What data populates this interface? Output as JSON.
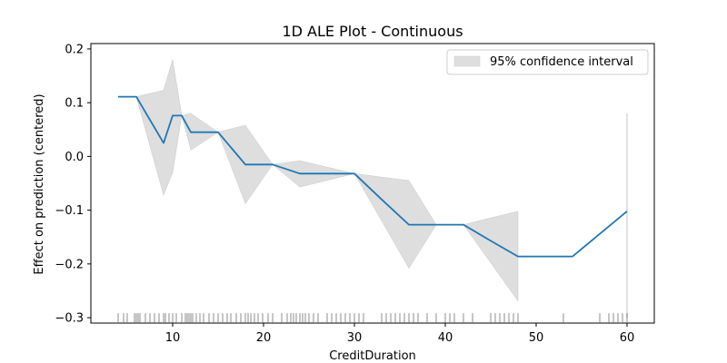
{
  "chart_data": {
    "type": "line",
    "title": "1D ALE Plot - Continuous",
    "xlabel": "CreditDuration",
    "ylabel": "Effect on prediction (centered)",
    "xlim": [
      1,
      63
    ],
    "ylim": [
      -0.31,
      0.21
    ],
    "xticks": [
      10,
      20,
      30,
      40,
      50,
      60
    ],
    "yticks": [
      -0.3,
      -0.2,
      -0.1,
      0.0,
      0.1,
      0.2
    ],
    "ytick_labels": [
      "−0.3",
      "−0.2",
      "−0.1",
      "0.0",
      "0.1",
      "0.2"
    ],
    "grid": false,
    "legend_position": "top-right",
    "colors": {
      "line": "#1f77b4",
      "band": "#d3d3d3",
      "rug": "#000000"
    },
    "series": [
      {
        "x": [
          4,
          6,
          9,
          10,
          11,
          12,
          15,
          18,
          21,
          24,
          27,
          30,
          33,
          36,
          39,
          42,
          45,
          48,
          54,
          60
        ],
        "values": [
          0.111,
          0.111,
          0.025,
          0.076,
          0.076,
          0.045,
          0.045,
          -0.015,
          -0.015,
          -0.032,
          -0.032,
          -0.032,
          -0.08,
          -0.127,
          -0.127,
          -0.127,
          -0.157,
          -0.186,
          -0.186,
          -0.102
        ]
      }
    ],
    "confidence_band": {
      "name": "95% confidence interval",
      "x": [
        6,
        9,
        10,
        11,
        12,
        15,
        18,
        21,
        24,
        30,
        36,
        39,
        42,
        48
      ],
      "lower": [
        0.111,
        -0.072,
        -0.03,
        0.076,
        0.012,
        0.045,
        -0.088,
        -0.015,
        -0.057,
        -0.032,
        -0.208,
        -0.127,
        -0.127,
        -0.269
      ],
      "upper": [
        0.111,
        0.123,
        0.18,
        0.076,
        0.08,
        0.045,
        0.058,
        -0.015,
        -0.008,
        -0.032,
        -0.045,
        -0.127,
        -0.127,
        -0.102
      ],
      "line_x": 60,
      "line_range": [
        -0.3,
        0.08
      ]
    },
    "rug_x": [
      4,
      4.6,
      5,
      5.8,
      6,
      6.2,
      6.4,
      7,
      7.5,
      8,
      8.5,
      9,
      9.2,
      9.6,
      10,
      10.4,
      11,
      11.4,
      11.6,
      11.8,
      12,
      12.2,
      12.6,
      13,
      13.4,
      14,
      14.5,
      15,
      15.5,
      16,
      16.4,
      17,
      17.5,
      18,
      18.3,
      18.6,
      19,
      19.4,
      19.9,
      20.5,
      21,
      22,
      22.6,
      23,
      23.3,
      23.6,
      24,
      24.3,
      24.6,
      25,
      25.5,
      26,
      27,
      27.5,
      28,
      28.5,
      29,
      29.5,
      30,
      30.5,
      31,
      33,
      33.5,
      34,
      34.5,
      35,
      35.5,
      36,
      36.5,
      37,
      38,
      39,
      40,
      40.5,
      41,
      42,
      43,
      45,
      45.5,
      46,
      46.5,
      47,
      47.5,
      48,
      53,
      57,
      58,
      58.5,
      59,
      59.5,
      60
    ]
  },
  "legend": {
    "label": "95% confidence interval"
  }
}
